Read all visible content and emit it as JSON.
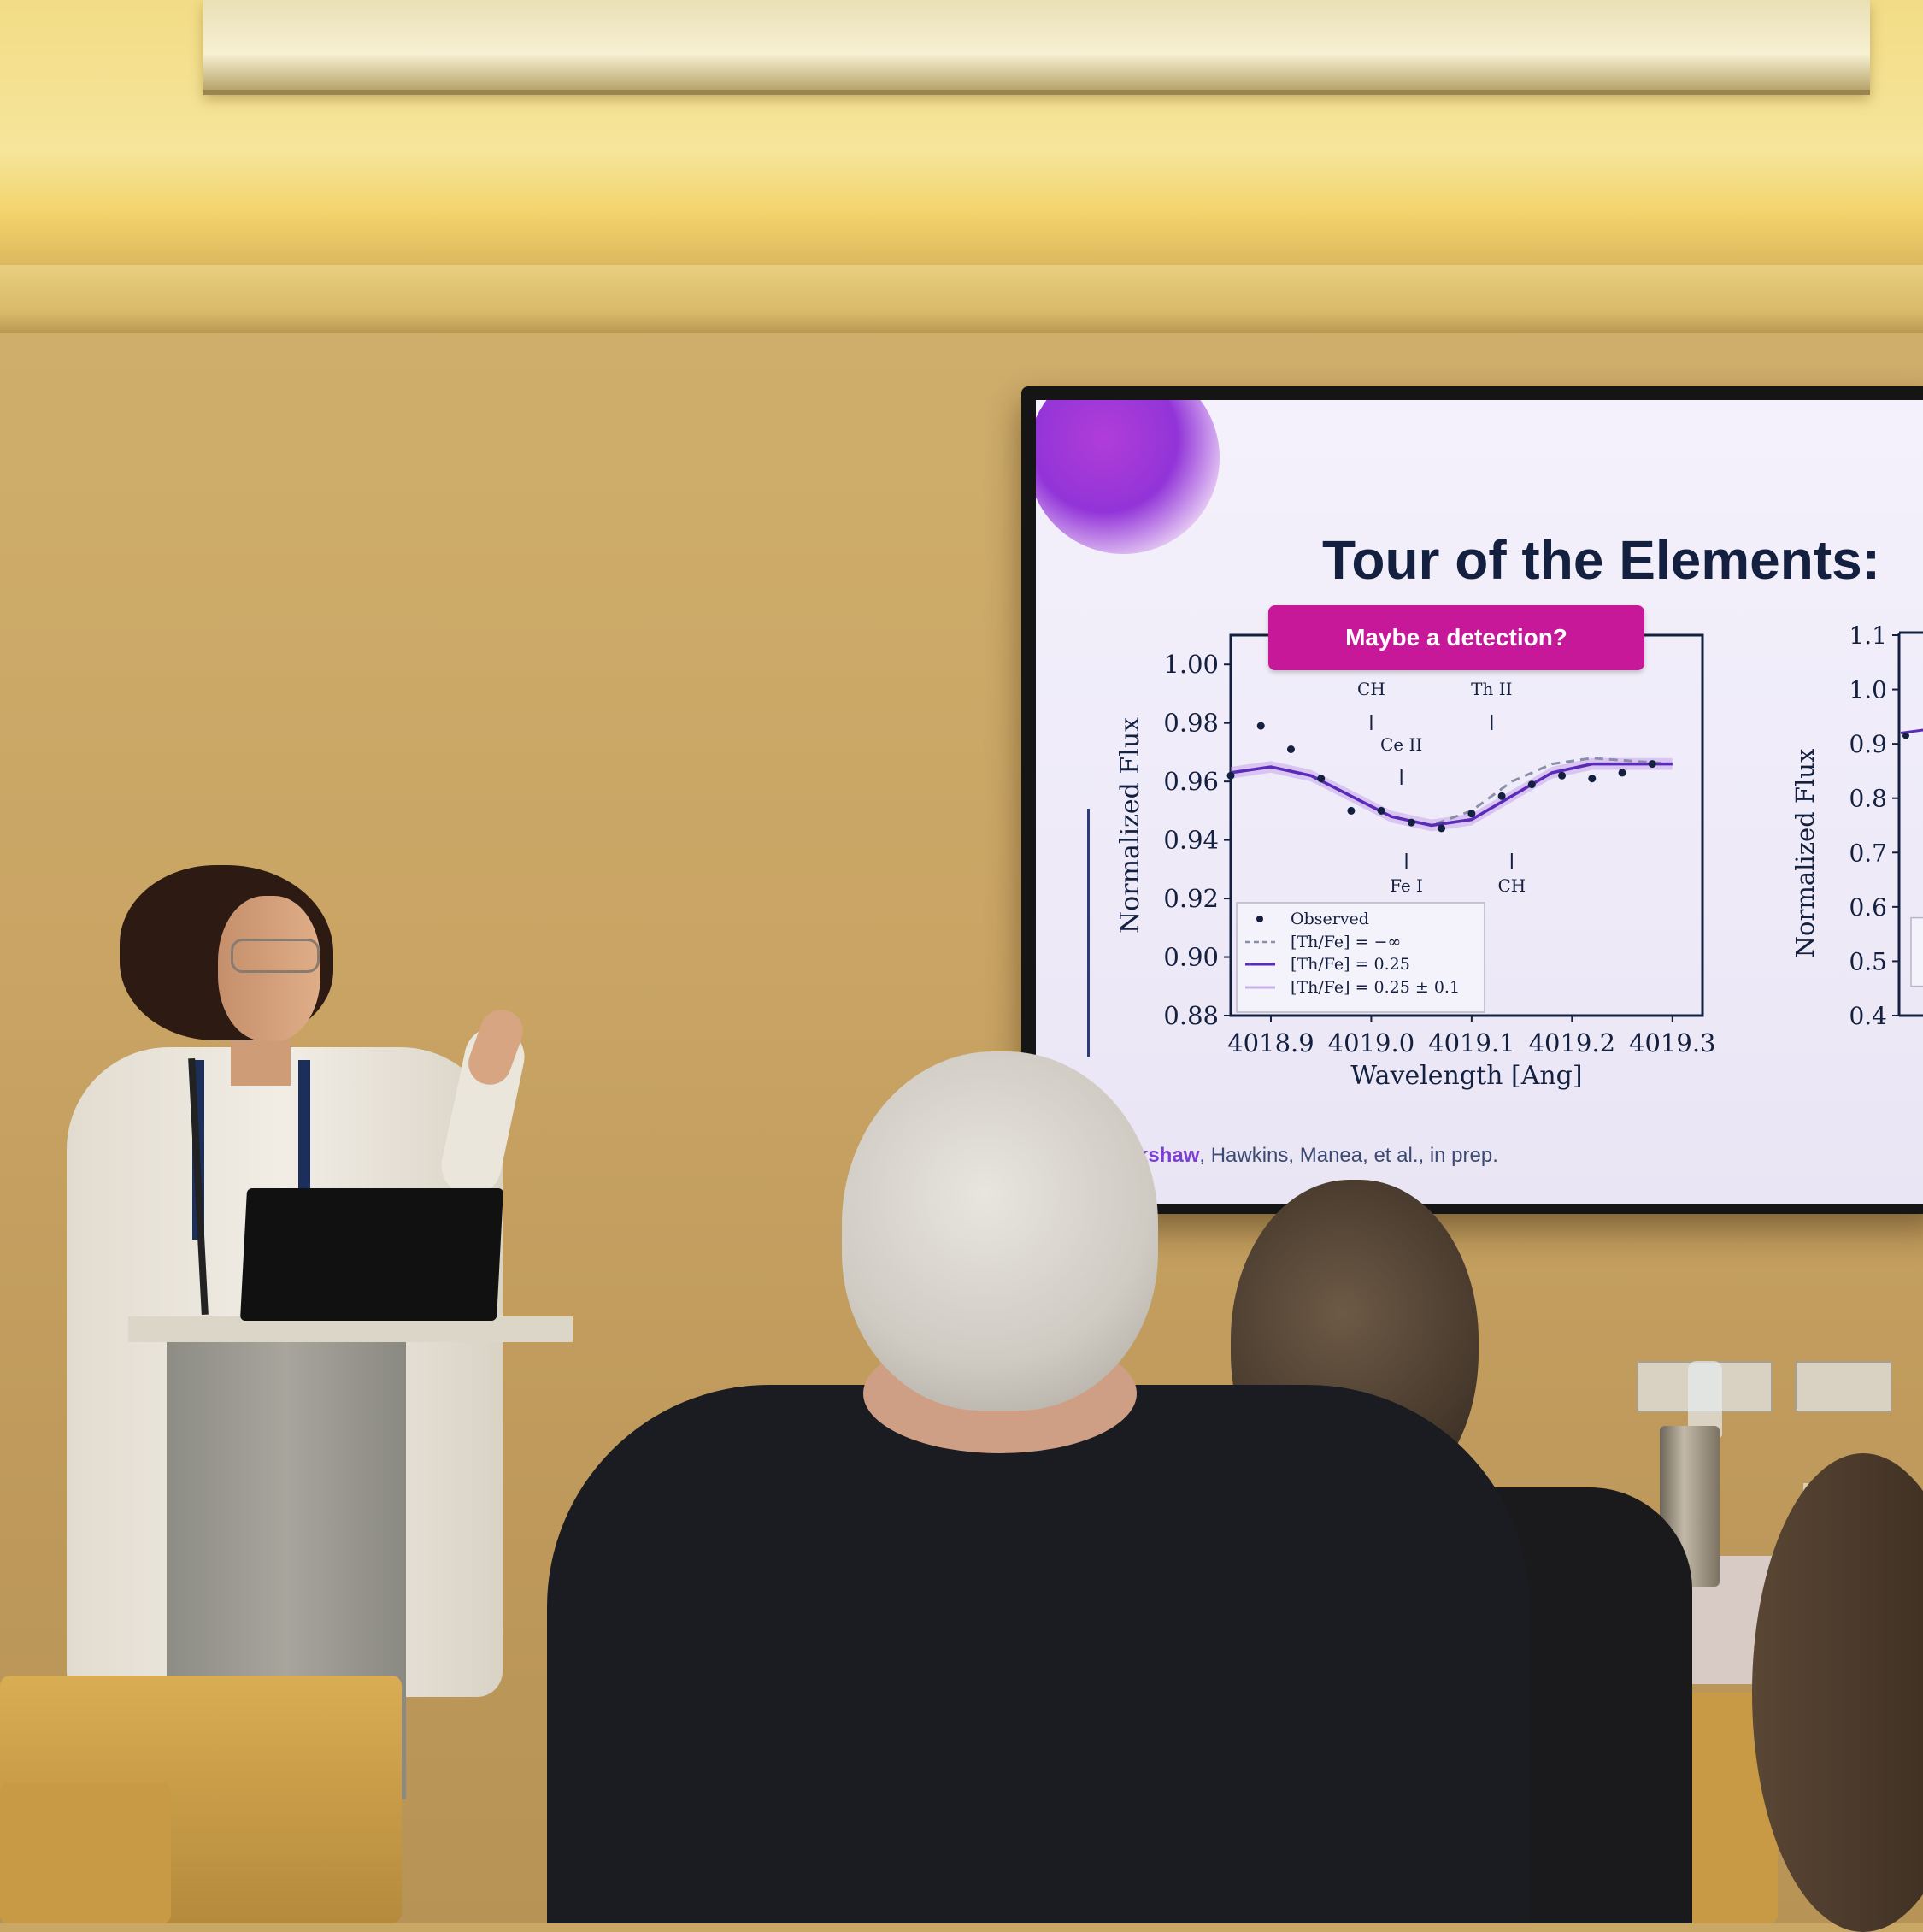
{
  "slide": {
    "title": "Tour of the Elements:",
    "badge": "Maybe a detection?",
    "credit_highlight": "kshaw",
    "credit_rest": ", Hawkins, Manea, et al., in prep."
  },
  "chart_data": [
    {
      "type": "line",
      "xlabel": "Wavelength [Ang]",
      "ylabel": "Normalized Flux",
      "xlim": [
        4018.86,
        4019.33
      ],
      "ylim": [
        0.88,
        1.01
      ],
      "x_ticks": [
        "4018.9",
        "4019.0",
        "4019.1",
        "4019.2",
        "4019.3"
      ],
      "y_ticks": [
        "1.00",
        "0.98",
        "0.96",
        "0.94",
        "0.92",
        "0.90",
        "0.88"
      ],
      "line_labels": [
        {
          "text": "CH",
          "x": 4019.0,
          "pos": "top"
        },
        {
          "text": "Th II",
          "x": 4019.12,
          "pos": "top"
        },
        {
          "text": "Ce II",
          "x": 4019.03,
          "pos": "top"
        },
        {
          "text": "Fe I",
          "x": 4019.035,
          "pos": "bottom"
        },
        {
          "text": "CH",
          "x": 4019.14,
          "pos": "bottom"
        }
      ],
      "legend": [
        "Observed",
        "[Th/Fe] = −∞",
        "[Th/Fe] = 0.25",
        "[Th/Fe] = 0.25 ± 0.1"
      ],
      "legend_position": "lower-left",
      "series": [
        {
          "name": "Observed",
          "x": [
            4018.86,
            4018.89,
            4018.92,
            4018.95,
            4018.98,
            4019.01,
            4019.04,
            4019.07,
            4019.1,
            4019.13,
            4019.16,
            4019.19,
            4019.22,
            4019.25,
            4019.28
          ],
          "y": [
            0.962,
            0.979,
            0.971,
            0.961,
            0.95,
            0.95,
            0.946,
            0.944,
            0.949,
            0.955,
            0.959,
            0.962,
            0.961,
            0.963,
            0.966
          ]
        },
        {
          "name": "[Th/Fe] = −∞",
          "x": [
            4018.86,
            4018.9,
            4018.94,
            4018.98,
            4019.02,
            4019.06,
            4019.1,
            4019.14,
            4019.18,
            4019.22,
            4019.26,
            4019.3
          ],
          "y": [
            0.963,
            0.965,
            0.962,
            0.955,
            0.948,
            0.945,
            0.95,
            0.96,
            0.966,
            0.968,
            0.967,
            0.966
          ]
        },
        {
          "name": "[Th/Fe] = 0.25",
          "x": [
            4018.86,
            4018.9,
            4018.94,
            4018.98,
            4019.02,
            4019.06,
            4019.1,
            4019.14,
            4019.18,
            4019.22,
            4019.26,
            4019.3
          ],
          "y": [
            0.963,
            0.965,
            0.962,
            0.955,
            0.948,
            0.945,
            0.947,
            0.955,
            0.963,
            0.966,
            0.966,
            0.966
          ]
        }
      ]
    },
    {
      "type": "line",
      "ylabel": "Normalized Flux",
      "y_ticks": [
        "1.1",
        "1.0",
        "0.9",
        "0.8",
        "0.7",
        "0.6",
        "0.5",
        "0.4"
      ],
      "ylim": [
        0.4,
        1.1
      ]
    }
  ]
}
